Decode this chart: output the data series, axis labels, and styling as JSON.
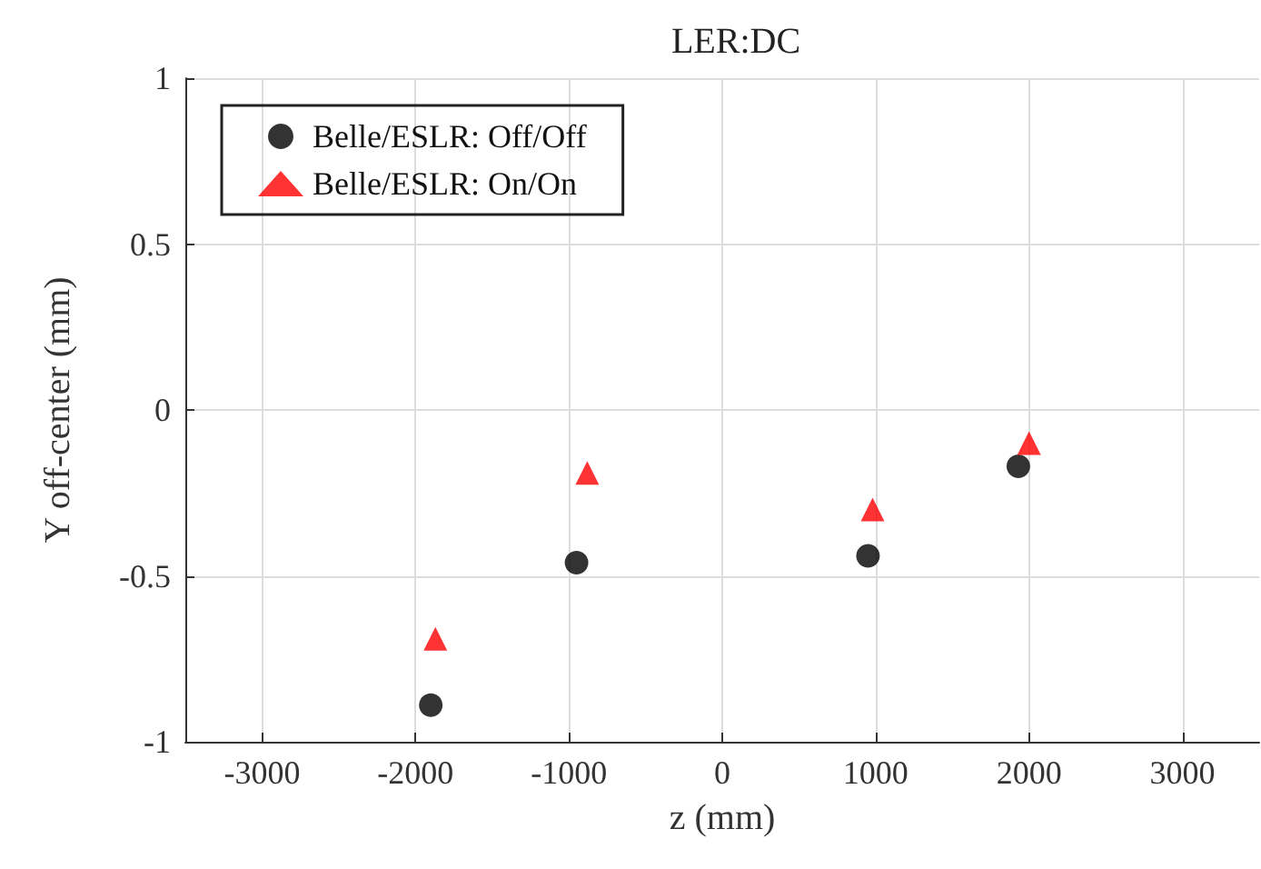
{
  "chart_data": {
    "type": "scatter",
    "title": "LER:DC",
    "xlabel": "z (mm)",
    "ylabel": "Y off-center (mm)",
    "xlim": [
      -3500,
      3500
    ],
    "xticks": [
      -3000,
      -2000,
      -1000,
      0,
      1000,
      2000,
      3000
    ],
    "ylim": [
      -1,
      1
    ],
    "yticks": [
      -1,
      -0.5,
      0,
      0.5,
      1
    ],
    "grid": true,
    "legend": "top left",
    "series": [
      {
        "name": "Belle/ESLR: Off/Off",
        "color": "#000000",
        "marker": "circle",
        "x": [
          -1900,
          -950,
          950,
          1930
        ],
        "values": [
          -0.89,
          -0.46,
          -0.44,
          -0.17
        ]
      },
      {
        "name": "Belle/ESLR: On/On",
        "color": "#ff0000",
        "marker": "triangle",
        "x": [
          -1870,
          -880,
          980,
          2000
        ],
        "values": [
          -0.69,
          -0.19,
          -0.3,
          -0.1
        ]
      }
    ]
  }
}
